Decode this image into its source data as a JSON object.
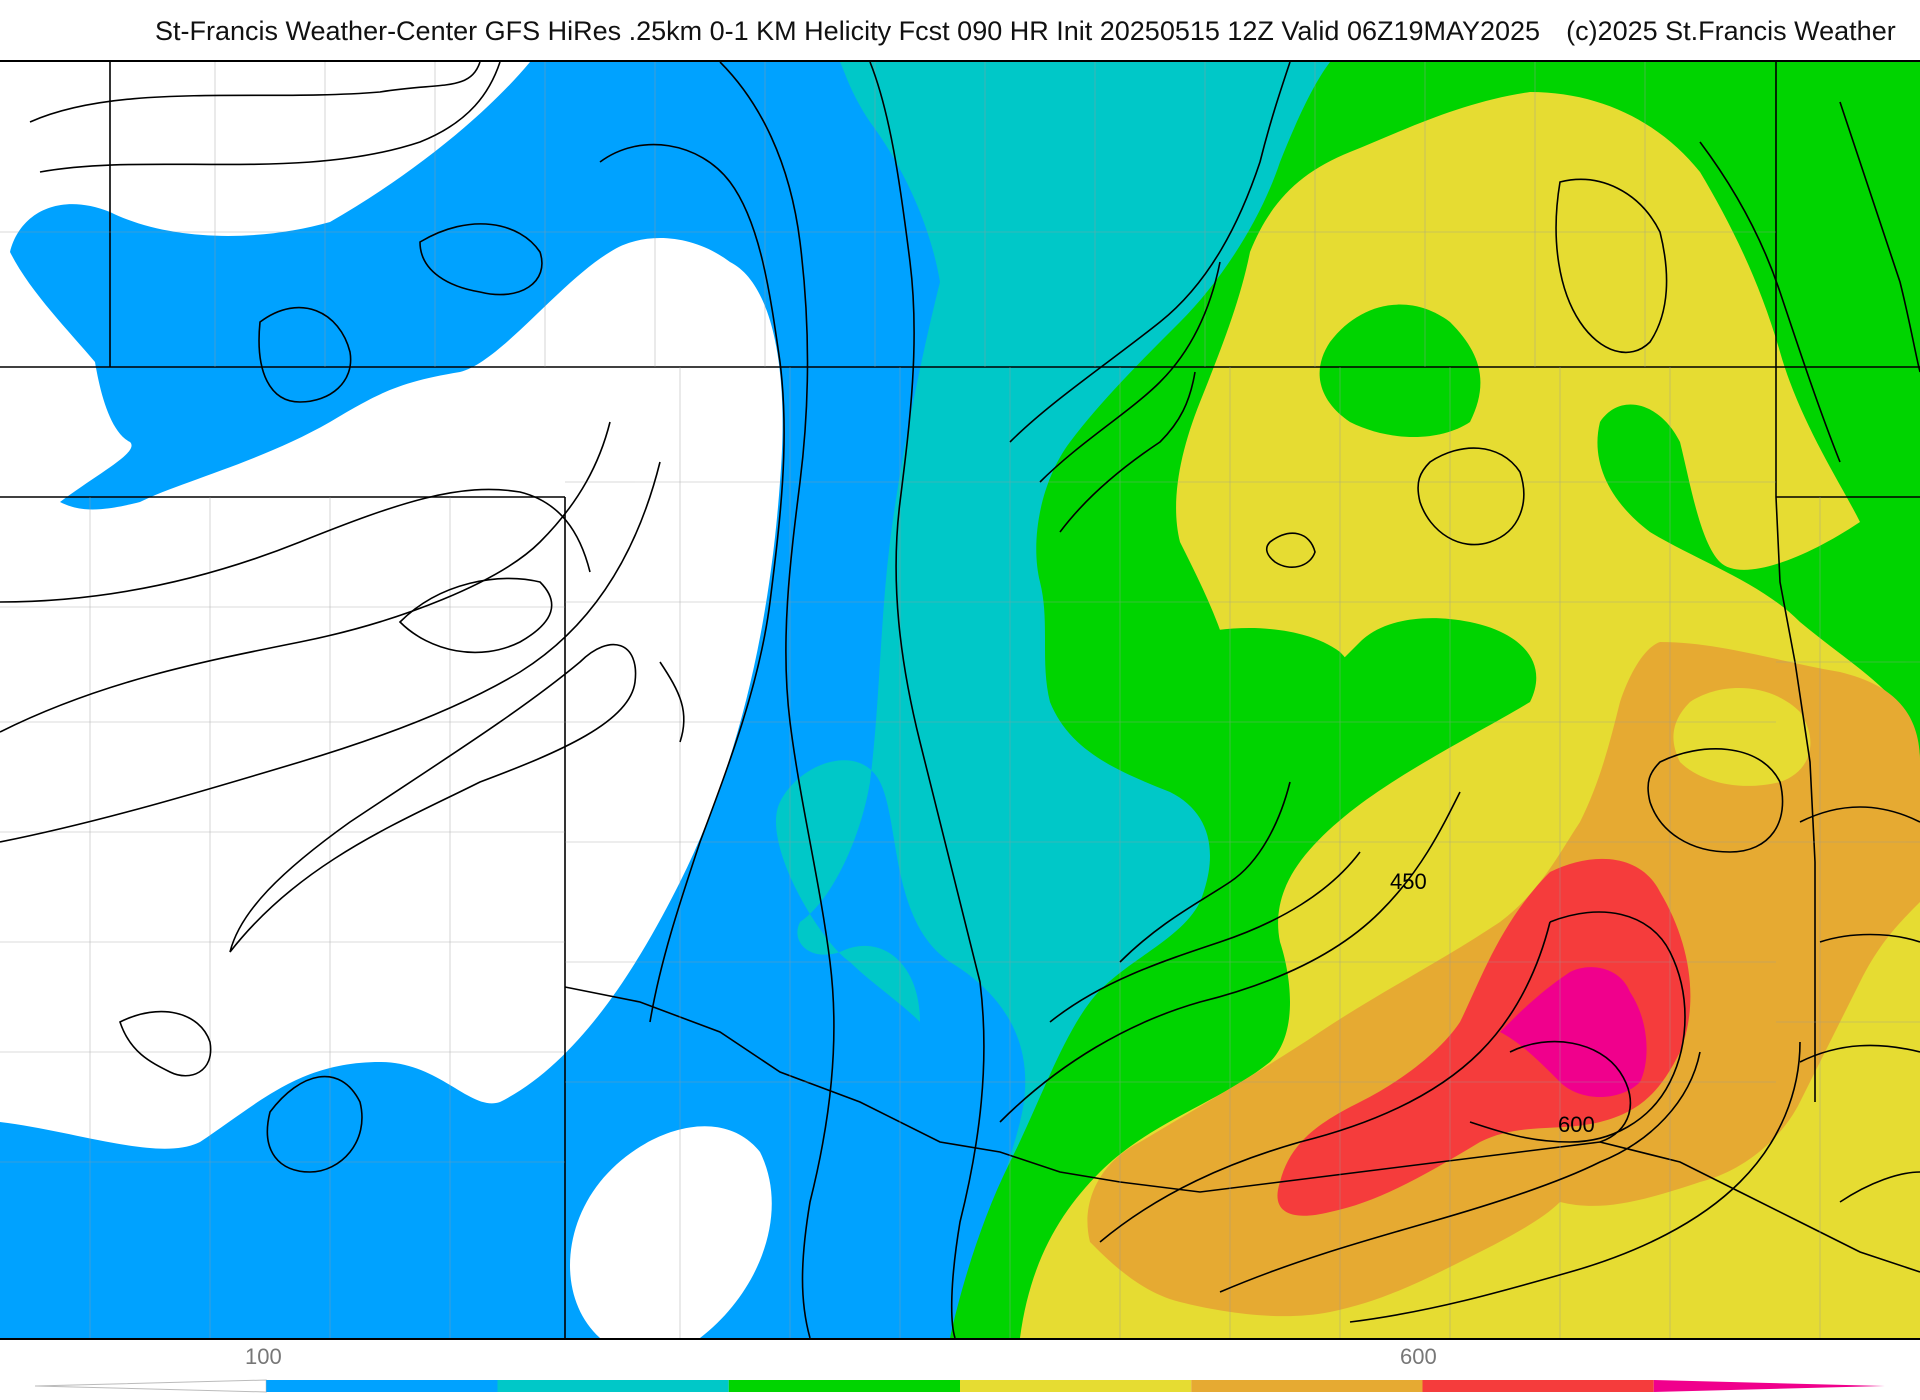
{
  "header": {
    "title": "St-Francis Weather-Center GFS HiRes .25km 0-1 KM Helicity Fcst 090 HR Init 20250515 12Z  Valid 06Z19MAY2025",
    "copyright": "(c)2025 St.Francis Weather"
  },
  "map": {
    "contour_labels": [
      "450",
      "600"
    ]
  },
  "legend": {
    "tick_labels": [
      "100",
      "600"
    ],
    "bins": [
      {
        "color": "#ffffff"
      },
      {
        "color": "#00a2ff"
      },
      {
        "color": "#00c8c8"
      },
      {
        "color": "#00d400"
      },
      {
        "color": "#e6dc32"
      },
      {
        "color": "#e6aa32"
      },
      {
        "color": "#f53c3c"
      },
      {
        "color": "#f0008c"
      }
    ]
  }
}
